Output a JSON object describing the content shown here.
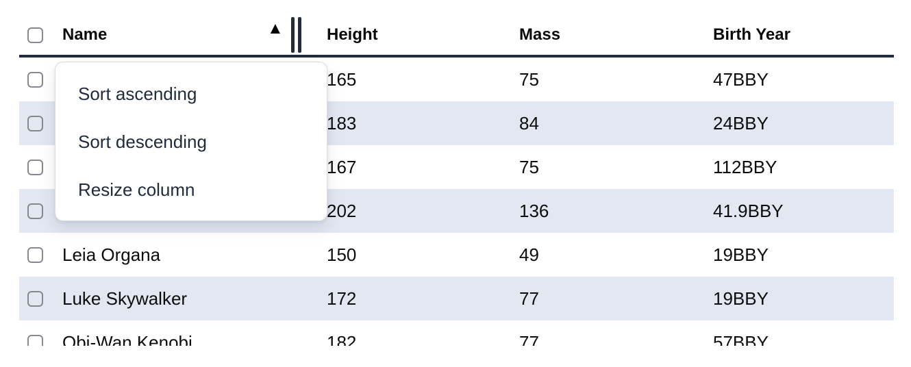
{
  "colors": {
    "line": "#222c3d",
    "row-alt": "#e2e7f1",
    "cell-text": "#0c0c0d",
    "menu-text": "#212b3c",
    "checkbox-border": "#85898f",
    "menu-border": "#d9dce1"
  },
  "icons": {
    "sort_ascending": "▲"
  },
  "table": {
    "header_checkbox_checked": false,
    "columns": [
      {
        "label": "Name",
        "sort": "ascending"
      },
      {
        "label": "Height",
        "sort": null
      },
      {
        "label": "Mass",
        "sort": null
      },
      {
        "label": "Birth Year",
        "sort": null
      }
    ],
    "rows": [
      {
        "name": "",
        "height": "165",
        "mass": "75",
        "birth_year": "47BBY",
        "checked": false
      },
      {
        "name": "",
        "height": "183",
        "mass": "84",
        "birth_year": "24BBY",
        "checked": false
      },
      {
        "name": "",
        "height": "167",
        "mass": "75",
        "birth_year": "112BBY",
        "checked": false
      },
      {
        "name": "",
        "height": "202",
        "mass": "136",
        "birth_year": "41.9BBY",
        "checked": false
      },
      {
        "name": "Leia Organa",
        "height": "150",
        "mass": "49",
        "birth_year": "19BBY",
        "checked": false
      },
      {
        "name": "Luke Skywalker",
        "height": "172",
        "mass": "77",
        "birth_year": "19BBY",
        "checked": false
      },
      {
        "name": "Obi-Wan Kenobi",
        "height": "182",
        "mass": "77",
        "birth_year": "57BBY",
        "checked": false
      }
    ]
  },
  "context_menu": {
    "items": [
      {
        "label": "Sort ascending"
      },
      {
        "label": "Sort descending"
      },
      {
        "label": "Resize column"
      }
    ]
  }
}
